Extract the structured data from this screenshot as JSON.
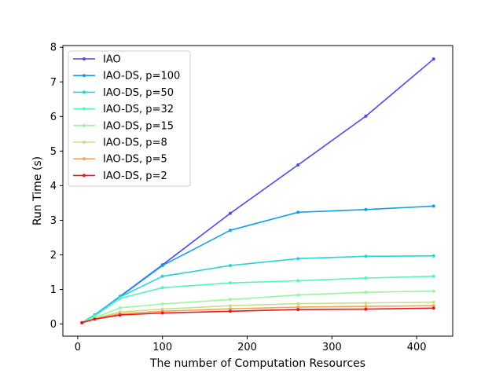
{
  "chart_data": {
    "type": "line",
    "title": "",
    "xlabel": "The number of Computation Resources",
    "ylabel": "Run Time (s)",
    "xlim": [
      -17.5,
      442.5
    ],
    "ylim": [
      -0.35,
      8.05
    ],
    "xticks": [
      0,
      100,
      200,
      300,
      400
    ],
    "yticks": [
      0,
      1,
      2,
      3,
      4,
      5,
      6,
      7,
      8
    ],
    "grid": false,
    "legend_position": "top-left",
    "x": [
      5,
      20,
      50,
      100,
      180,
      260,
      340,
      420
    ],
    "series": [
      {
        "name": "IAO",
        "color": "#4a4ae6",
        "values": [
          0.04,
          0.26,
          0.8,
          1.71,
          3.2,
          4.6,
          6.01,
          7.66
        ]
      },
      {
        "name": "IAO-DS, p=100",
        "color": "#139ee6",
        "values": [
          0.04,
          0.26,
          0.79,
          1.69,
          2.71,
          3.23,
          3.31,
          3.41
        ]
      },
      {
        "name": "IAO-DS, p=50",
        "color": "#27d4d4",
        "values": [
          0.04,
          0.25,
          0.78,
          1.38,
          1.69,
          1.89,
          1.96,
          1.97
        ]
      },
      {
        "name": "IAO-DS, p=32",
        "color": "#56f2c4",
        "values": [
          0.04,
          0.23,
          0.74,
          1.05,
          1.19,
          1.25,
          1.33,
          1.38
        ]
      },
      {
        "name": "IAO-DS, p=15",
        "color": "#9af5a0",
        "values": [
          0.04,
          0.18,
          0.47,
          0.58,
          0.71,
          0.84,
          0.92,
          0.95
        ]
      },
      {
        "name": "IAO-DS, p=8",
        "color": "#c6e08a",
        "values": [
          0.04,
          0.16,
          0.35,
          0.43,
          0.53,
          0.59,
          0.61,
          0.63
        ]
      },
      {
        "name": "IAO-DS, p=5",
        "color": "#f5a35a",
        "values": [
          0.04,
          0.15,
          0.3,
          0.37,
          0.44,
          0.49,
          0.51,
          0.53
        ]
      },
      {
        "name": "IAO-DS, p=2",
        "color": "#e61a1a",
        "values": [
          0.04,
          0.14,
          0.26,
          0.32,
          0.37,
          0.42,
          0.43,
          0.46
        ]
      }
    ]
  }
}
